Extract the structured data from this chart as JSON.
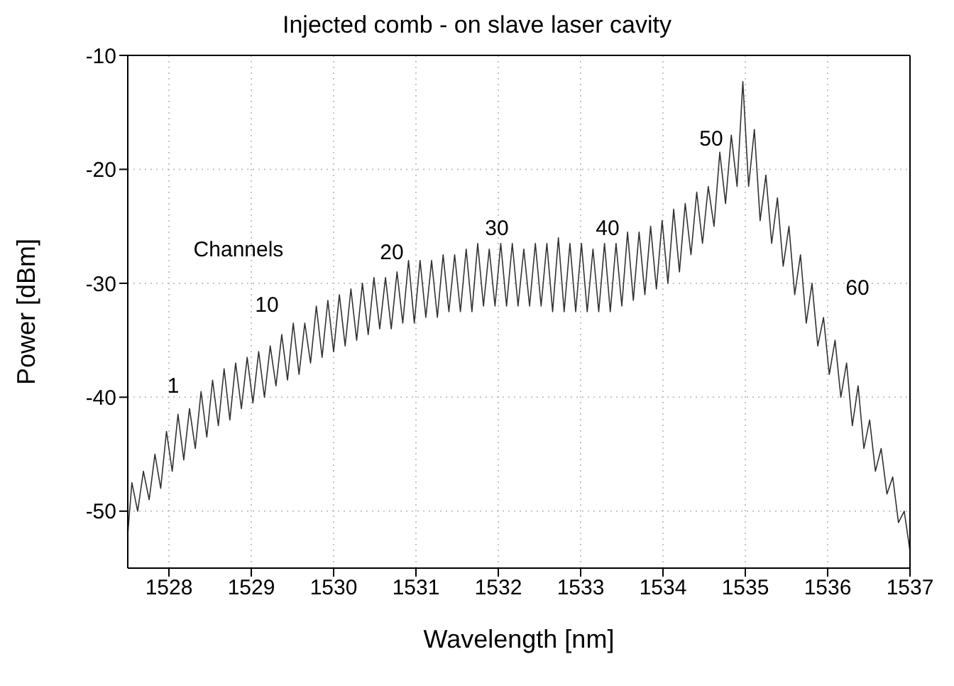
{
  "chart_data": {
    "type": "line",
    "title": "Injected comb - on slave laser cavity",
    "xlabel": "Wavelength [nm]",
    "ylabel": "Power [dBm]",
    "xlim": [
      1527.5,
      1537
    ],
    "xticks": [
      1528,
      1529,
      1530,
      1531,
      1532,
      1533,
      1534,
      1535,
      1536,
      1537
    ],
    "ylim": [
      -55,
      -10
    ],
    "yticks": [
      -50,
      -40,
      -30,
      -20,
      -10
    ],
    "grid": true,
    "legend": false,
    "marker": "none",
    "line_style": "solid",
    "series": [
      {
        "color": "#333333",
        "x": [
          1527.5,
          1527.55,
          1527.62,
          1527.69,
          1527.76,
          1527.83,
          1527.9,
          1527.97,
          1528.04,
          1528.11,
          1528.18,
          1528.25,
          1528.32,
          1528.39,
          1528.46,
          1528.53,
          1528.6,
          1528.67,
          1528.74,
          1528.81,
          1528.88,
          1528.95,
          1529.02,
          1529.09,
          1529.16,
          1529.23,
          1529.3,
          1529.37,
          1529.44,
          1529.51,
          1529.58,
          1529.65,
          1529.72,
          1529.79,
          1529.86,
          1529.93,
          1530.0,
          1530.07,
          1530.14,
          1530.21,
          1530.28,
          1530.35,
          1530.42,
          1530.49,
          1530.56,
          1530.63,
          1530.7,
          1530.77,
          1530.84,
          1530.91,
          1530.98,
          1531.05,
          1531.12,
          1531.19,
          1531.26,
          1531.33,
          1531.4,
          1531.47,
          1531.54,
          1531.61,
          1531.68,
          1531.75,
          1531.82,
          1531.89,
          1531.96,
          1532.03,
          1532.1,
          1532.17,
          1532.24,
          1532.31,
          1532.38,
          1532.45,
          1532.52,
          1532.59,
          1532.66,
          1532.73,
          1532.8,
          1532.87,
          1532.94,
          1533.01,
          1533.08,
          1533.15,
          1533.22,
          1533.29,
          1533.36,
          1533.43,
          1533.5,
          1533.57,
          1533.64,
          1533.71,
          1533.78,
          1533.85,
          1533.92,
          1533.99,
          1534.06,
          1534.13,
          1534.2,
          1534.27,
          1534.34,
          1534.41,
          1534.48,
          1534.55,
          1534.62,
          1534.69,
          1534.76,
          1534.83,
          1534.9,
          1534.97,
          1535.04,
          1535.11,
          1535.18,
          1535.25,
          1535.32,
          1535.39,
          1535.46,
          1535.53,
          1535.6,
          1535.67,
          1535.74,
          1535.81,
          1535.88,
          1535.95,
          1536.02,
          1536.09,
          1536.16,
          1536.23,
          1536.3,
          1536.37,
          1536.44,
          1536.51,
          1536.58,
          1536.65,
          1536.72,
          1536.79,
          1536.86,
          1536.93,
          1537.0
        ],
        "values": [
          -52,
          -47.5,
          -50,
          -46.5,
          -49,
          -45,
          -48,
          -43,
          -46.5,
          -41.5,
          -45.5,
          -41,
          -44.5,
          -39.5,
          -43.5,
          -38.5,
          -42.5,
          -37.5,
          -42,
          -37,
          -41,
          -36.5,
          -40.5,
          -36,
          -40,
          -35.5,
          -39,
          -34.5,
          -38.5,
          -33.5,
          -38,
          -33.5,
          -37,
          -32,
          -36.5,
          -31.5,
          -36,
          -31,
          -35.5,
          -30.5,
          -35,
          -30,
          -34.5,
          -29.5,
          -34,
          -29.5,
          -34,
          -29,
          -33.5,
          -28,
          -33.5,
          -28,
          -33,
          -28,
          -33,
          -27.5,
          -32.5,
          -27.5,
          -32.5,
          -27,
          -32.5,
          -26.5,
          -32,
          -27,
          -32,
          -26.5,
          -32,
          -26.5,
          -32,
          -27,
          -32,
          -26.5,
          -32,
          -26.5,
          -32.5,
          -26,
          -32.5,
          -26.5,
          -32.5,
          -26.5,
          -32.5,
          -27,
          -32.5,
          -26.5,
          -32.5,
          -26.5,
          -32,
          -25.5,
          -31.5,
          -25.5,
          -31,
          -25,
          -30.5,
          -24.5,
          -30,
          -23.5,
          -29,
          -23,
          -27.5,
          -22,
          -26.5,
          -21.5,
          -25,
          -18.5,
          -23,
          -17,
          -21.5,
          -12.3,
          -21.5,
          -16.5,
          -24.5,
          -20.5,
          -26.5,
          -22.5,
          -28.5,
          -25,
          -31,
          -27.5,
          -33.5,
          -30,
          -35.5,
          -33,
          -38,
          -35,
          -40,
          -37,
          -42.5,
          -39,
          -44.5,
          -42,
          -46.5,
          -44.5,
          -48.5,
          -47,
          -51,
          -50,
          -53.5
        ]
      }
    ],
    "annotations": [
      "Channels",
      "1",
      "10",
      "20",
      "30",
      "40",
      "50",
      "60"
    ]
  }
}
